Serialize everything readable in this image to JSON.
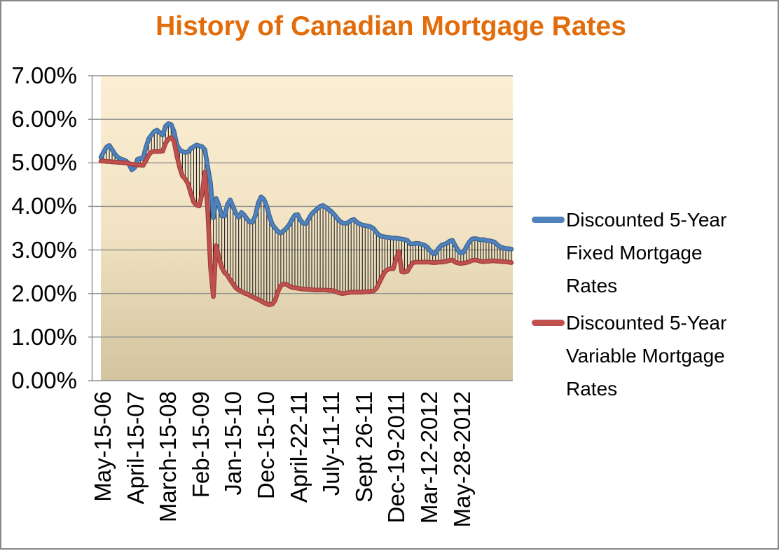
{
  "title": "History of Canadian Mortgage Rates",
  "colors": {
    "title": "#E36C0A",
    "fixed_line": "#4F81BD",
    "fixed_line_edge": "#3A6390",
    "variable_line": "#C0504D",
    "variable_line_edge": "#9C3D3B",
    "gridline": "#8F8F8F",
    "axis_line": "#8F8F8F",
    "drop_line": "#1F1F1F",
    "plot_bg_top": "#FCEED3",
    "plot_bg_mid": "#F0E2C2",
    "plot_bg_bottom": "#D2C49D",
    "frame_border": "#888888",
    "text": "#000000"
  },
  "y_axis": {
    "labels": [
      "7.00%",
      "6.00%",
      "5.00%",
      "4.00%",
      "3.00%",
      "2.00%",
      "1.00%",
      "0.00%"
    ]
  },
  "x_axis": {
    "labels": [
      "May-15-06",
      "April-15-07",
      "March-15-08",
      "Feb-15-09",
      "Jan-15-10",
      "Dec-15-10",
      "April-22-11",
      "July-11-11",
      "Sept 26-11",
      "Dec-19-2011",
      "Mar-12-2012",
      "May-28-2012"
    ]
  },
  "legend": {
    "items": [
      {
        "series": "fixed",
        "label": "Discounted 5-Year Fixed Mortgage Rates",
        "label_lines": [
          "Discounted 5-Year",
          "Fixed Mortgage",
          "Rates"
        ]
      },
      {
        "series": "variable",
        "label": "Discounted 5-Year Variable Mortgage Rates",
        "label_lines": [
          "Discounted 5-Year",
          "Variable Mortgage",
          "Rates"
        ]
      }
    ]
  },
  "chart_data": {
    "type": "line",
    "title": "History of Canadian Mortgage Rates",
    "ylim": [
      0,
      7
    ],
    "y_tick_labels": [
      "0.00%",
      "1.00%",
      "2.00%",
      "3.00%",
      "4.00%",
      "5.00%",
      "6.00%",
      "7.00%"
    ],
    "x_tick_labels": [
      "May-15-06",
      "April-15-07",
      "March-15-08",
      "Feb-15-09",
      "Jan-15-10",
      "Dec-15-10",
      "April-22-11",
      "July-11-11",
      "Sept 26-11",
      "Dec-19-2011",
      "Mar-12-2012",
      "May-28-2012"
    ],
    "grid": true,
    "legend_position": "right",
    "high_low_lines": true,
    "units": "percent",
    "series": [
      {
        "name": "Discounted 5-Year Fixed Mortgage Rates",
        "color": "#4F81BD",
        "values": [
          5.13,
          5.25,
          5.36,
          5.4,
          5.3,
          5.2,
          5.13,
          5.09,
          5.07,
          5.04,
          4.97,
          4.84,
          4.89,
          5.08,
          5.1,
          5.1,
          5.35,
          5.55,
          5.64,
          5.72,
          5.75,
          5.69,
          5.64,
          5.84,
          5.9,
          5.88,
          5.72,
          5.42,
          5.3,
          5.26,
          5.24,
          5.25,
          5.33,
          5.37,
          5.41,
          5.39,
          5.37,
          5.3,
          4.9,
          4.53,
          3.74,
          4.18,
          4.02,
          3.78,
          3.78,
          4.04,
          4.15,
          3.99,
          3.84,
          3.75,
          3.86,
          3.8,
          3.71,
          3.64,
          3.64,
          3.8,
          4.08,
          4.22,
          4.16,
          4.0,
          3.76,
          3.58,
          3.5,
          3.42,
          3.39,
          3.44,
          3.5,
          3.58,
          3.7,
          3.8,
          3.81,
          3.68,
          3.61,
          3.61,
          3.72,
          3.83,
          3.89,
          3.95,
          4.0,
          4.02,
          3.98,
          3.93,
          3.88,
          3.81,
          3.73,
          3.66,
          3.62,
          3.61,
          3.63,
          3.68,
          3.7,
          3.64,
          3.6,
          3.57,
          3.56,
          3.55,
          3.53,
          3.49,
          3.4,
          3.34,
          3.31,
          3.3,
          3.29,
          3.28,
          3.27,
          3.27,
          3.26,
          3.25,
          3.24,
          3.22,
          3.14,
          3.14,
          3.15,
          3.15,
          3.13,
          3.11,
          3.07,
          2.99,
          2.92,
          2.92,
          3.03,
          3.1,
          3.13,
          3.15,
          3.2,
          3.22,
          3.1,
          2.99,
          2.93,
          2.95,
          3.07,
          3.18,
          3.25,
          3.26,
          3.25,
          3.23,
          3.24,
          3.22,
          3.21,
          3.2,
          3.18,
          3.12,
          3.07,
          3.05,
          3.03,
          3.03,
          3.02
        ]
      },
      {
        "name": "Discounted 5-Year Variable Mortgage Rates",
        "color": "#C0504D",
        "values": [
          5.04,
          5.04,
          5.03,
          5.03,
          5.02,
          5.02,
          5.01,
          5.01,
          5.0,
          5.0,
          4.98,
          4.97,
          4.96,
          4.95,
          4.95,
          4.94,
          5.05,
          5.18,
          5.25,
          5.26,
          5.26,
          5.26,
          5.27,
          5.45,
          5.55,
          5.58,
          5.5,
          5.17,
          4.9,
          4.7,
          4.63,
          4.52,
          4.3,
          4.1,
          4.03,
          4.01,
          4.3,
          4.79,
          3.9,
          2.6,
          1.93,
          3.1,
          2.82,
          2.6,
          2.48,
          2.42,
          2.31,
          2.22,
          2.13,
          2.08,
          2.05,
          2.01,
          1.99,
          1.95,
          1.92,
          1.89,
          1.86,
          1.83,
          1.79,
          1.76,
          1.74,
          1.76,
          1.85,
          2.05,
          2.18,
          2.22,
          2.21,
          2.17,
          2.14,
          2.13,
          2.12,
          2.11,
          2.1,
          2.1,
          2.09,
          2.09,
          2.08,
          2.08,
          2.08,
          2.08,
          2.08,
          2.07,
          2.07,
          2.06,
          2.03,
          2.01,
          2.0,
          2.01,
          2.02,
          2.03,
          2.03,
          2.03,
          2.03,
          2.03,
          2.04,
          2.04,
          2.05,
          2.06,
          2.12,
          2.25,
          2.38,
          2.5,
          2.55,
          2.57,
          2.57,
          2.8,
          2.97,
          2.5,
          2.49,
          2.51,
          2.62,
          2.71,
          2.72,
          2.72,
          2.72,
          2.72,
          2.72,
          2.72,
          2.71,
          2.71,
          2.72,
          2.72,
          2.73,
          2.74,
          2.76,
          2.77,
          2.72,
          2.7,
          2.69,
          2.7,
          2.71,
          2.73,
          2.76,
          2.77,
          2.76,
          2.74,
          2.73,
          2.74,
          2.74,
          2.75,
          2.75,
          2.74,
          2.74,
          2.73,
          2.73,
          2.72,
          2.71
        ]
      }
    ]
  }
}
